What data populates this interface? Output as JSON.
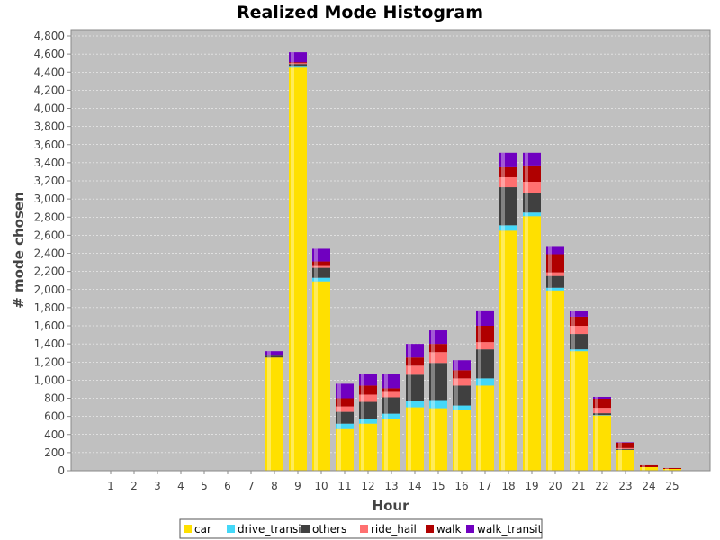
{
  "chart_data": {
    "type": "bar",
    "stacked": true,
    "title": "Realized Mode Histogram",
    "xlabel": "Hour",
    "ylabel": "# mode chosen",
    "ylim": [
      0,
      4800
    ],
    "ytick_step": 200,
    "grid": true,
    "legend_position": "bottom",
    "categories": [
      "1",
      "2",
      "3",
      "4",
      "5",
      "6",
      "7",
      "8",
      "9",
      "10",
      "11",
      "12",
      "13",
      "14",
      "15",
      "16",
      "17",
      "18",
      "19",
      "20",
      "21",
      "22",
      "23",
      "24",
      "25"
    ],
    "series": [
      {
        "name": "car",
        "color": "#ffe000",
        "values": [
          0,
          0,
          0,
          0,
          0,
          0,
          0,
          1250,
          4450,
          2090,
          460,
          520,
          570,
          700,
          690,
          670,
          940,
          2650,
          2810,
          1990,
          1320,
          610,
          230,
          40,
          20
        ]
      },
      {
        "name": "drive_transit",
        "color": "#44d8f8",
        "values": [
          0,
          0,
          0,
          0,
          0,
          0,
          0,
          0,
          20,
          40,
          60,
          50,
          60,
          70,
          90,
          50,
          80,
          60,
          40,
          30,
          20,
          5,
          0,
          0,
          0
        ]
      },
      {
        "name": "others",
        "color": "#404040",
        "values": [
          0,
          0,
          0,
          0,
          0,
          0,
          0,
          30,
          20,
          110,
          130,
          190,
          180,
          290,
          410,
          220,
          320,
          420,
          220,
          130,
          170,
          20,
          10,
          0,
          0
        ]
      },
      {
        "name": "ride_hail",
        "color": "#ff7070",
        "values": [
          0,
          0,
          0,
          0,
          0,
          0,
          0,
          0,
          10,
          30,
          60,
          80,
          70,
          100,
          120,
          80,
          80,
          110,
          120,
          40,
          90,
          60,
          10,
          0,
          0
        ]
      },
      {
        "name": "walk",
        "color": "#b00000",
        "values": [
          0,
          0,
          0,
          0,
          0,
          0,
          0,
          0,
          10,
          40,
          90,
          100,
          30,
          90,
          90,
          90,
          180,
          110,
          180,
          200,
          100,
          100,
          60,
          20,
          10
        ]
      },
      {
        "name": "walk_transit",
        "color": "#7000c0",
        "values": [
          0,
          0,
          0,
          0,
          0,
          0,
          0,
          40,
          110,
          140,
          160,
          130,
          160,
          150,
          150,
          110,
          170,
          160,
          140,
          90,
          60,
          20,
          5,
          0,
          0
        ]
      }
    ]
  }
}
